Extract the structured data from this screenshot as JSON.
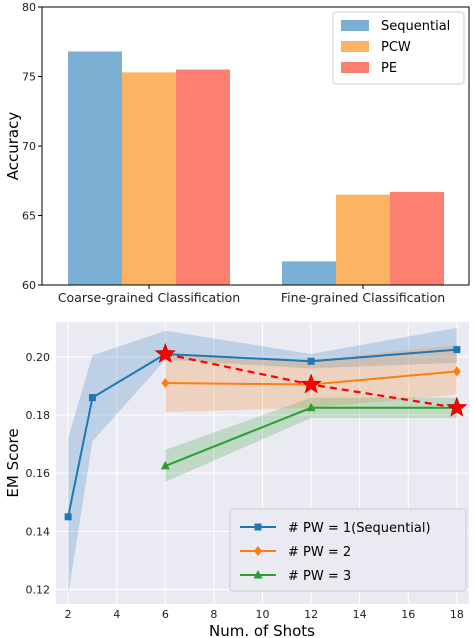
{
  "chart_data": [
    {
      "type": "bar",
      "title": "",
      "xlabel": "",
      "ylabel": "Accuracy",
      "ylim": [
        60,
        80
      ],
      "yticks": [
        60,
        65,
        70,
        75,
        80
      ],
      "categories": [
        "Coarse-grained Classification",
        "Fine-grained Classification"
      ],
      "series": [
        {
          "name": "Sequential",
          "color": "#7bafd4",
          "values": [
            76.8,
            61.7
          ]
        },
        {
          "name": "PCW",
          "color": "#fdb462",
          "values": [
            75.3,
            66.5
          ]
        },
        {
          "name": "PE",
          "color": "#fb8072",
          "values": [
            75.5,
            66.7
          ]
        }
      ],
      "legend": "top-right",
      "grid": false
    },
    {
      "type": "line",
      "title": "",
      "xlabel": "Num. of Shots",
      "ylabel": "EM Score",
      "xlim": [
        1.5,
        18.5
      ],
      "ylim": [
        0.115,
        0.212
      ],
      "xticks": [
        2,
        4,
        6,
        8,
        10,
        12,
        14,
        16,
        18
      ],
      "yticks": [
        0.12,
        0.14,
        0.16,
        0.18,
        0.2
      ],
      "yticklabels": [
        "0.12",
        "0.14",
        "0.16",
        "0.18",
        "0.20"
      ],
      "series": [
        {
          "name": "# PW = 1(Sequential)",
          "color": "#1f77b4",
          "marker": "square",
          "x": [
            2,
            3,
            6,
            12,
            18
          ],
          "values": [
            0.145,
            0.186,
            0.201,
            0.1985,
            0.2025
          ],
          "lower": [
            0.118,
            0.171,
            0.199,
            0.196,
            0.198
          ],
          "upper": [
            0.172,
            0.2005,
            0.209,
            0.201,
            0.21
          ]
        },
        {
          "name": "# PW = 2",
          "color": "#ff7f0e",
          "marker": "diamond",
          "x": [
            6,
            12,
            18
          ],
          "values": [
            0.191,
            0.1905,
            0.195
          ],
          "lower": [
            0.181,
            0.1825,
            0.187
          ],
          "upper": [
            0.201,
            0.199,
            0.204
          ]
        },
        {
          "name": "# PW = 3",
          "color": "#2ca02c",
          "marker": "triangle",
          "x": [
            6,
            12,
            18
          ],
          "values": [
            0.1625,
            0.1825,
            0.1825
          ],
          "lower": [
            0.157,
            0.179,
            0.179
          ],
          "upper": [
            0.168,
            0.186,
            0.186
          ]
        }
      ],
      "highlight": {
        "color": "#ff0000",
        "marker": "star",
        "style": "dashed",
        "x": [
          6,
          12,
          18
        ],
        "values": [
          0.201,
          0.1905,
          0.1825
        ]
      },
      "legend": "lower-right",
      "grid": true
    }
  ]
}
